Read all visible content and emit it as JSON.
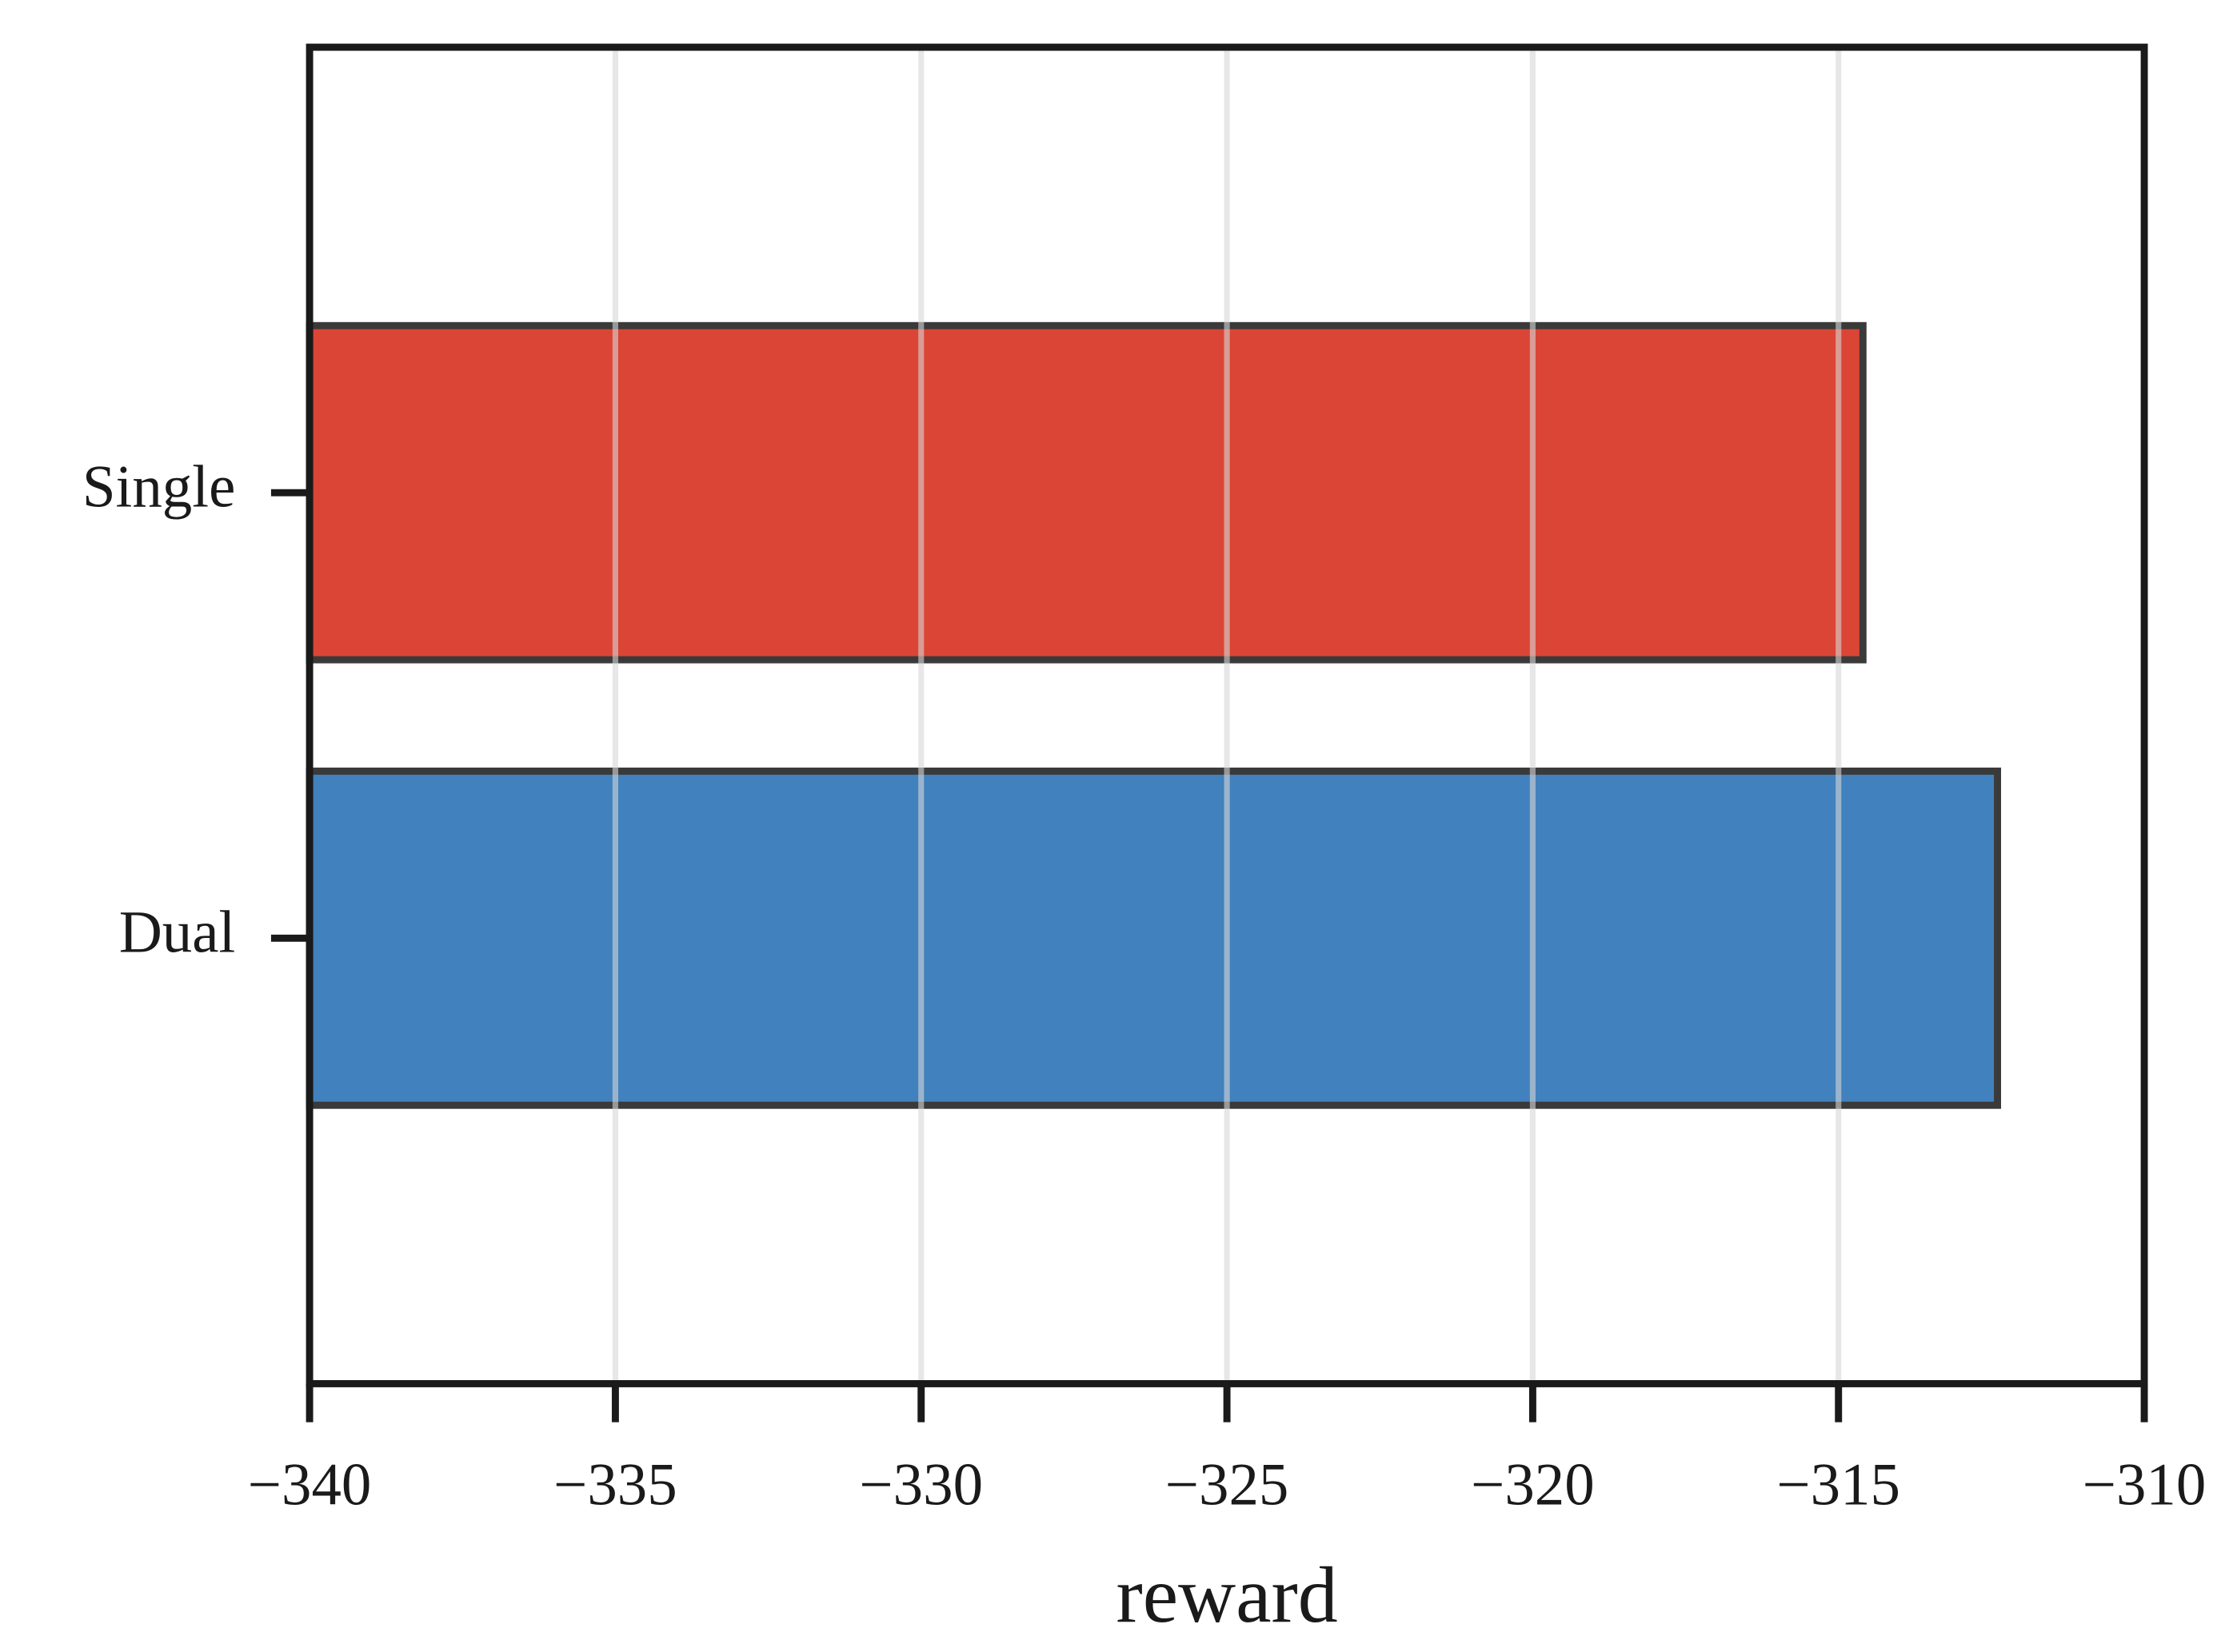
{
  "chart_data": {
    "type": "barh",
    "xlabel": "reward",
    "categories": [
      "Single",
      "Dual"
    ],
    "values": [
      -314.6,
      -312.4
    ],
    "colors": [
      "#db4535",
      "#4181bd"
    ],
    "xlim": [
      -340,
      -310
    ],
    "xticks": [
      {
        "value": -340,
        "label": "−340"
      },
      {
        "value": -335,
        "label": "−335"
      },
      {
        "value": -330,
        "label": "−330"
      },
      {
        "value": -325,
        "label": "−325"
      },
      {
        "value": -320,
        "label": "−320"
      },
      {
        "value": -315,
        "label": "−315"
      },
      {
        "value": -310,
        "label": "−310"
      }
    ],
    "grid": true
  }
}
